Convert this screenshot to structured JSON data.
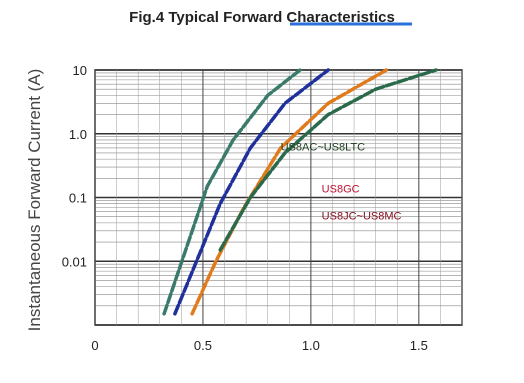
{
  "chart_data": {
    "type": "line",
    "title": "Fig.4  Typical Forward Characteristics",
    "xlabel": "",
    "ylabel": "Instantaneous Forward Current (A)",
    "xlim": [
      0,
      1.7
    ],
    "ylim": [
      0.001,
      10
    ],
    "yscale": "log",
    "x_ticks": [
      "0",
      "0.5",
      "1.0",
      "1.5"
    ],
    "y_ticks": [
      "10",
      "1.0",
      "0.1",
      "0.01"
    ],
    "grid": true,
    "annotations": [
      "US8AC~US8LTC",
      "US8GC",
      "US8JC~US8MC"
    ],
    "series": [
      {
        "name": "",
        "color": "#3a7a6a",
        "x": [
          0.32,
          0.42,
          0.52,
          0.64,
          0.8,
          0.95
        ],
        "y": [
          0.0015,
          0.015,
          0.15,
          0.8,
          4.0,
          10
        ]
      },
      {
        "name": "",
        "color": "#1f2f9c",
        "x": [
          0.37,
          0.47,
          0.58,
          0.72,
          0.88,
          1.08
        ],
        "y": [
          0.0015,
          0.01,
          0.08,
          0.6,
          3.0,
          10
        ]
      },
      {
        "name": "",
        "color": "#e07a1a",
        "x": [
          0.45,
          0.56,
          0.69,
          0.86,
          1.08,
          1.35
        ],
        "y": [
          0.0015,
          0.01,
          0.07,
          0.6,
          3.0,
          10
        ]
      },
      {
        "name": "",
        "color": "#2a6a4a",
        "x": [
          0.58,
          0.72,
          0.88,
          1.08,
          1.3,
          1.58
        ],
        "y": [
          0.015,
          0.1,
          0.5,
          2.0,
          5.0,
          10
        ]
      }
    ]
  },
  "colors": {
    "background": "#ffffff",
    "grid": "#333333",
    "text": "#222222"
  }
}
